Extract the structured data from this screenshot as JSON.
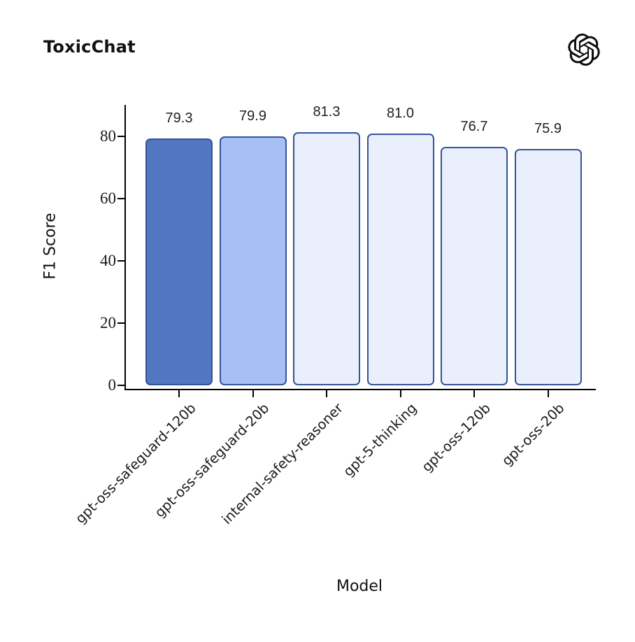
{
  "icons": {
    "logo": "openai-logo"
  },
  "chart_data": {
    "type": "bar",
    "title": "ToxicChat",
    "xlabel": "Model",
    "ylabel": "F1 Score",
    "categories": [
      "gpt-oss-safeguard-120b",
      "gpt-oss-safeguard-20b",
      "internal-safety-reasoner",
      "gpt-5-thinking",
      "gpt-oss-120b",
      "gpt-oss-20b"
    ],
    "values": [
      79.3,
      79.9,
      81.3,
      81.0,
      76.7,
      75.9
    ],
    "value_labels": [
      "79.3",
      "79.9",
      "81.3",
      "81.0",
      "76.7",
      "75.9"
    ],
    "yticks": [
      0,
      20,
      40,
      60,
      80
    ],
    "ylim": [
      0,
      90
    ],
    "grid": false,
    "legend": null,
    "bar_colors": [
      "#5276c2",
      "#a6bff5",
      "#e9effc",
      "#e9effc",
      "#e9effc",
      "#e9effc"
    ],
    "bar_border_color": "#35539a",
    "axis_color": "#000000",
    "text_color": "#1a1a1a"
  }
}
